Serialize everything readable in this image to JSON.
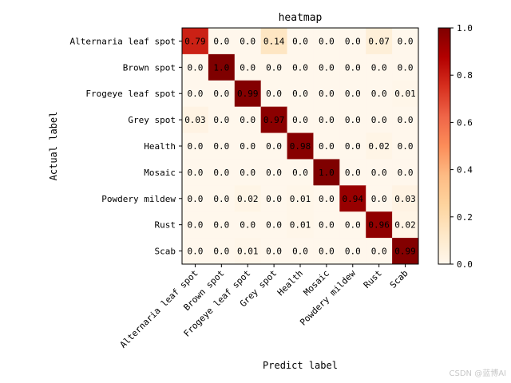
{
  "chart_data": {
    "type": "heatmap",
    "title": "heatmap",
    "xlabel": "Predict label",
    "ylabel": "Actual label",
    "categories": [
      "Alternaria leaf spot",
      "Brown spot",
      "Frogeye leaf spot",
      "Grey spot",
      "Health",
      "Mosaic",
      "Powdery mildew",
      "Rust",
      "Scab"
    ],
    "value_labels": [
      [
        "0.79",
        "0.0",
        "0.0",
        "0.14",
        "0.0",
        "0.0",
        "0.0",
        "0.07",
        "0.0"
      ],
      [
        "0.0",
        "1.0",
        "0.0",
        "0.0",
        "0.0",
        "0.0",
        "0.0",
        "0.0",
        "0.0"
      ],
      [
        "0.0",
        "0.0",
        "0.99",
        "0.0",
        "0.0",
        "0.0",
        "0.0",
        "0.0",
        "0.01"
      ],
      [
        "0.03",
        "0.0",
        "0.0",
        "0.97",
        "0.0",
        "0.0",
        "0.0",
        "0.0",
        "0.0"
      ],
      [
        "0.0",
        "0.0",
        "0.0",
        "0.0",
        "0.98",
        "0.0",
        "0.0",
        "0.02",
        "0.0"
      ],
      [
        "0.0",
        "0.0",
        "0.0",
        "0.0",
        "0.0",
        "1.0",
        "0.0",
        "0.0",
        "0.0"
      ],
      [
        "0.0",
        "0.0",
        "0.02",
        "0.0",
        "0.01",
        "0.0",
        "0.94",
        "0.0",
        "0.03"
      ],
      [
        "0.0",
        "0.0",
        "0.0",
        "0.0",
        "0.01",
        "0.0",
        "0.0",
        "0.96",
        "0.02"
      ],
      [
        "0.0",
        "0.0",
        "0.01",
        "0.0",
        "0.0",
        "0.0",
        "0.0",
        "0.0",
        "0.99"
      ]
    ],
    "colorbar": {
      "range": [
        0.0,
        1.0
      ],
      "ticks": [
        "0.0",
        "0.2",
        "0.4",
        "0.6",
        "0.8",
        "1.0"
      ]
    },
    "colormap": {
      "name": "OrRd",
      "low": "#fff7ec",
      "mid": "#fc8d59",
      "high": "#7f0000"
    },
    "grid": false
  },
  "watermark": "CSDN @蓝博AI"
}
